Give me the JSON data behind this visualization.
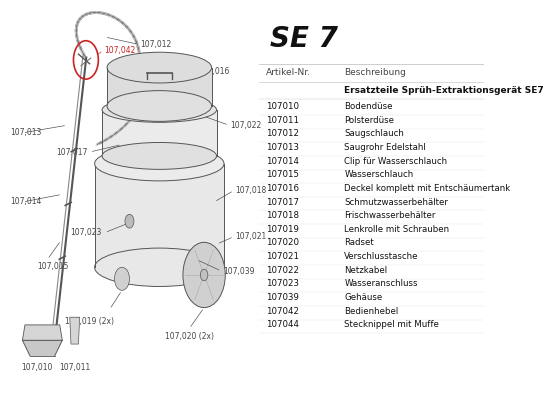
{
  "title": "SE 7",
  "header_col1": "Artikel-Nr.",
  "header_col2": "Beschreibung",
  "section_header": "Ersatzteile Sprüh-Extraktionsgerät SE7",
  "parts": [
    [
      "107010",
      "Bodendüse"
    ],
    [
      "107011",
      "Polsterdüse"
    ],
    [
      "107012",
      "Saugschlauch"
    ],
    [
      "107013",
      "Saugrohr Edelstahl"
    ],
    [
      "107014",
      "Clip für Wasserschlauch"
    ],
    [
      "107015",
      "Wasserschlauch"
    ],
    [
      "107016",
      "Deckel komplett mit Entschäumertank"
    ],
    [
      "107017",
      "Schmutzwasserbehälter"
    ],
    [
      "107018",
      "Frischwasserbehälter"
    ],
    [
      "107019",
      "Lenkrolle mit Schrauben"
    ],
    [
      "107020",
      "Radset"
    ],
    [
      "107021",
      "Verschlusstasche"
    ],
    [
      "107022",
      "Netzkabel"
    ],
    [
      "107023",
      "Wasseranschluss"
    ],
    [
      "107039",
      "Gehäuse"
    ],
    [
      "107042",
      "Bedienhebel"
    ],
    [
      "107044",
      "Stecknippel mit Muffe"
    ]
  ],
  "highlighted_part": "107042",
  "bg_color": "#ffffff",
  "text_color": "#1a1a1a",
  "label_color": "#444444",
  "diagram_lc": "#555555",
  "title_fontsize": 20,
  "header_fontsize": 6.5,
  "parts_fontsize": 6.2,
  "section_fontsize": 6.5,
  "label_fontsize": 5.5
}
